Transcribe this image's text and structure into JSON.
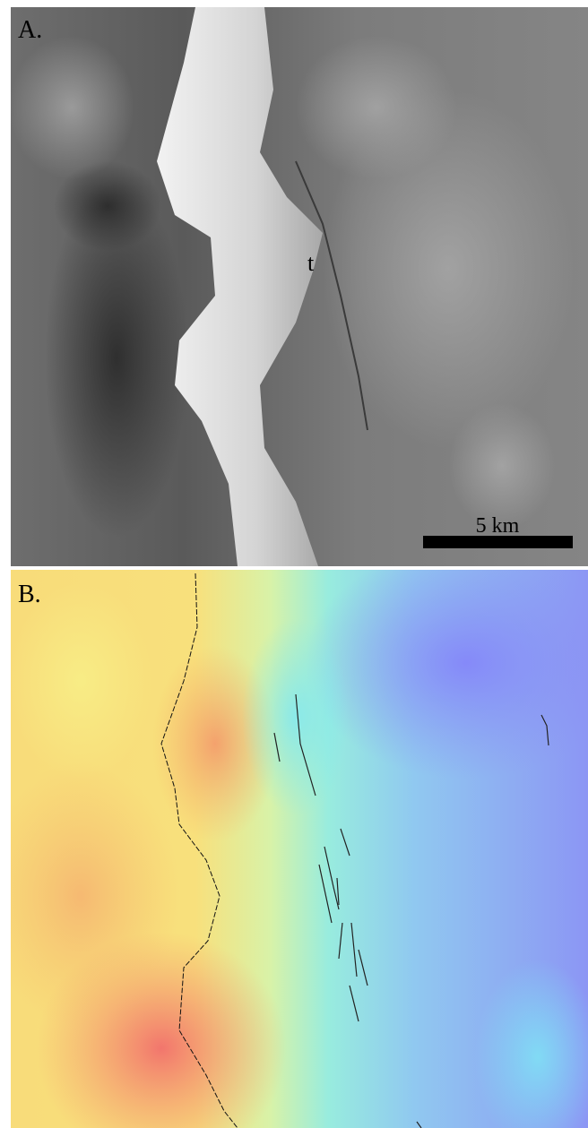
{
  "panels": [
    {
      "label": "A.",
      "annotation": "t",
      "scale_bar": "5 km"
    },
    {
      "label": "B."
    }
  ]
}
